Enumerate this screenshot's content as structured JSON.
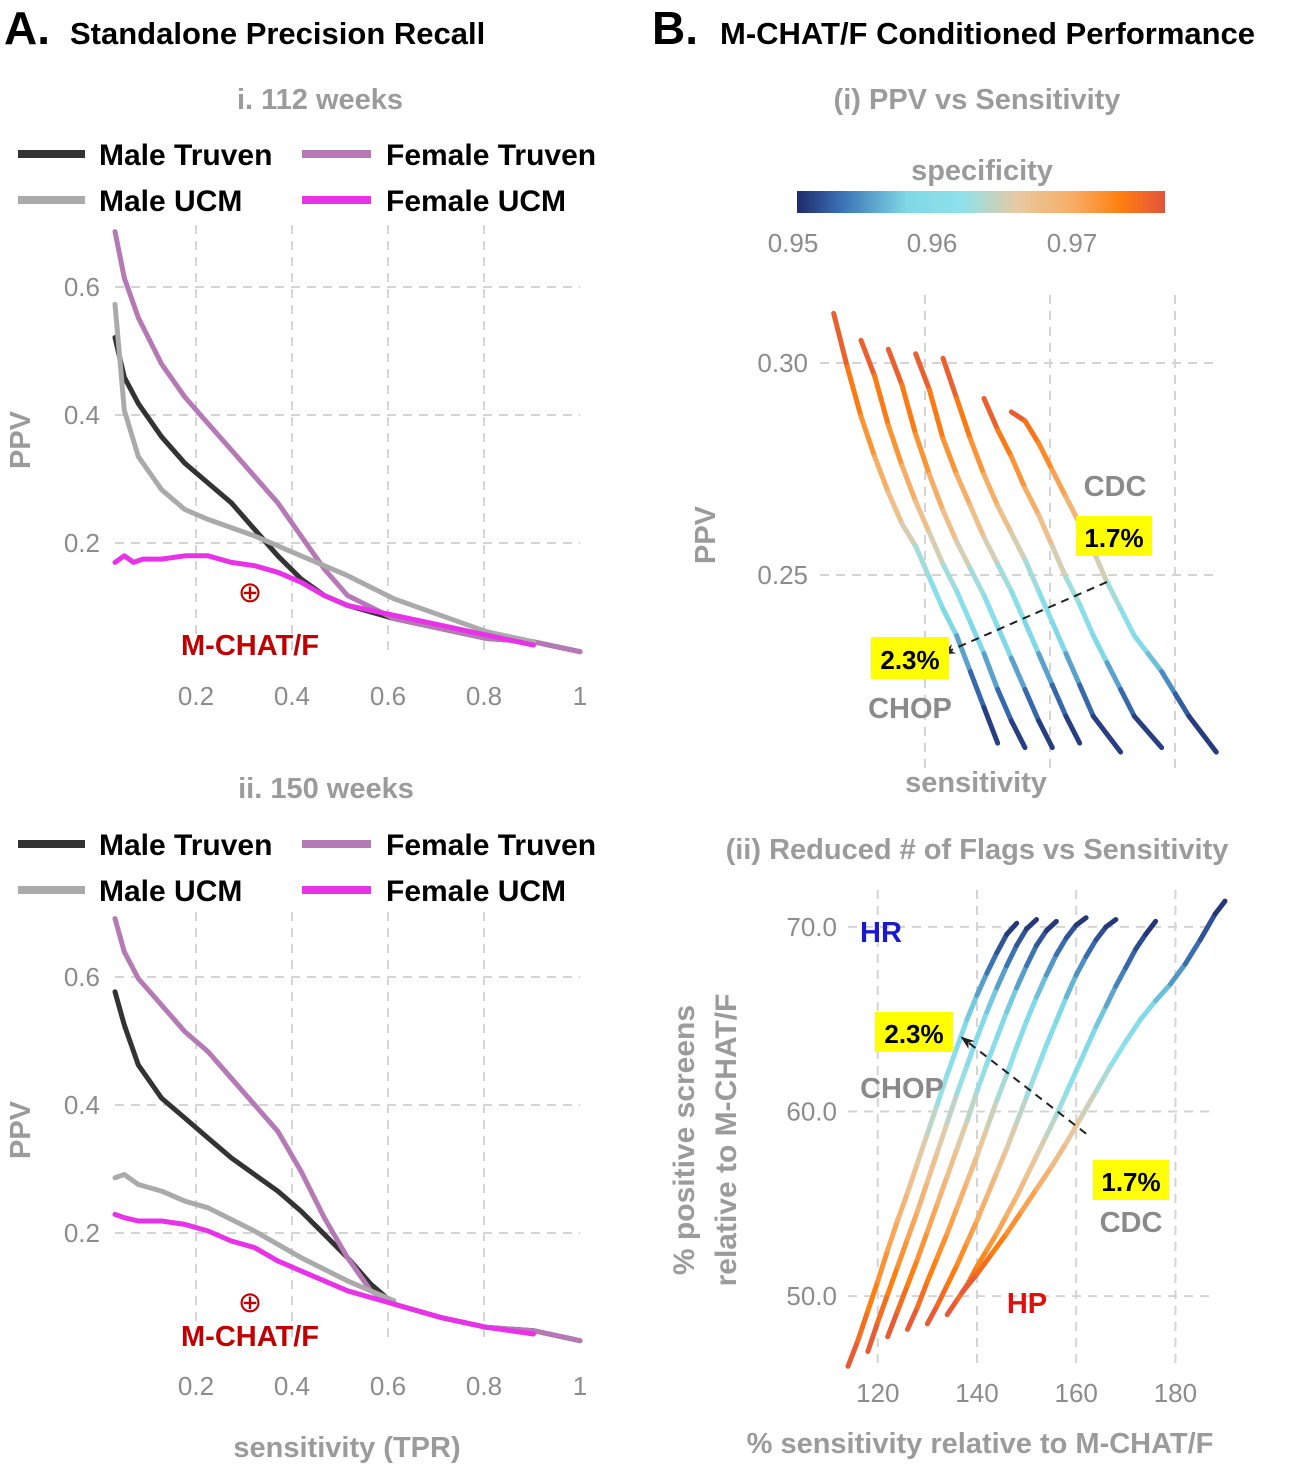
{
  "panelA": {
    "letter": "A.",
    "title": "Standalone Precision Recall",
    "charts": [
      {
        "subtitle": "i.  112 weeks",
        "marker_label": "M-CHAT/F",
        "marker": {
          "x": 0.31,
          "y": 0.165
        }
      },
      {
        "subtitle": "ii.  150 weeks",
        "marker_label": "M-CHAT/F",
        "marker": {
          "x": 0.31,
          "y": 0.12
        }
      }
    ],
    "xlabel": "sensitivity (TPR)",
    "ylabel": "PPV",
    "legend": [
      "Male Truven",
      "Female Truven",
      "Male UCM",
      "Female UCM"
    ]
  },
  "panelB": {
    "letter": "B.",
    "title": "M-CHAT/F Conditioned Performance",
    "sub1": {
      "subtitle": "(i) PPV vs Sensitivity",
      "colorbar_title": "specificity",
      "colorbar_ticks": [
        "0.95",
        "0.96",
        "0.97"
      ],
      "xlabel": "sensitivity",
      "ylabel": "PPV",
      "cdc_label": "CDC",
      "cdc_value": "1.7%",
      "chop_label": "CHOP",
      "chop_value": "2.3%"
    },
    "sub2": {
      "subtitle": "(ii) Reduced # of Flags vs Sensitivity",
      "xlabel": "% sensitivity relative to M-CHAT/F",
      "ylabel_line1": "% positive screens",
      "ylabel_line2": "relative to M-CHAT/F",
      "hr_label": "HR",
      "hp_label": "HP",
      "cdc_label": "CDC",
      "cdc_value": "1.7%",
      "chop_label": "CHOP",
      "chop_value": "2.3%"
    }
  },
  "colors": {
    "male_truven": "#333333",
    "female_truven": "#b57ab5",
    "male_ucm": "#aaaaaa",
    "female_ucm": "#e832e8",
    "mchat": "#c00000",
    "highlight": "#ffff00",
    "colormap": [
      "#1f2a6b",
      "#3a71b4",
      "#7fd9e6",
      "#8fe1ea",
      "#e8c9a3",
      "#f7ad64",
      "#ff7f0e",
      "#e2533d"
    ]
  },
  "chart_data": [
    {
      "type": "line",
      "title": "i.  112 weeks",
      "xlabel": "sensitivity (TPR)",
      "ylabel": "PPV",
      "xlim": [
        0.0,
        1.0
      ],
      "ylim": [
        0.05,
        0.7
      ],
      "xticks": [
        "0.2",
        "0.4",
        "0.6",
        "0.8",
        "1"
      ],
      "yticks": [
        "0.2",
        "0.4",
        "0.6"
      ],
      "series": [
        {
          "name": "Male Truven",
          "x": [
            0.0,
            0.02,
            0.05,
            0.1,
            0.15,
            0.2,
            0.25,
            0.3,
            0.35,
            0.4,
            0.45,
            0.5,
            0.6,
            0.7,
            0.8,
            0.9,
            1.0
          ],
          "y": [
            0.53,
            0.47,
            0.43,
            0.38,
            0.34,
            0.31,
            0.28,
            0.24,
            0.2,
            0.165,
            0.14,
            0.125,
            0.105,
            0.09,
            0.075,
            0.07,
            0.055
          ]
        },
        {
          "name": "Female Truven",
          "x": [
            0.0,
            0.02,
            0.05,
            0.1,
            0.15,
            0.2,
            0.25,
            0.3,
            0.35,
            0.4,
            0.45,
            0.5,
            0.6,
            0.7,
            0.8,
            0.9,
            1.0
          ],
          "y": [
            0.69,
            0.62,
            0.56,
            0.49,
            0.44,
            0.4,
            0.36,
            0.32,
            0.28,
            0.23,
            0.18,
            0.14,
            0.105,
            0.09,
            0.075,
            0.07,
            0.055
          ]
        },
        {
          "name": "Male UCM",
          "x": [
            0.0,
            0.01,
            0.02,
            0.05,
            0.1,
            0.15,
            0.2,
            0.3,
            0.4,
            0.5,
            0.6,
            0.7,
            0.8,
            0.9
          ],
          "y": [
            0.58,
            0.5,
            0.42,
            0.35,
            0.3,
            0.27,
            0.255,
            0.23,
            0.2,
            0.17,
            0.135,
            0.11,
            0.085,
            0.07
          ]
        },
        {
          "name": "Female UCM",
          "x": [
            0.0,
            0.02,
            0.04,
            0.06,
            0.1,
            0.15,
            0.2,
            0.25,
            0.3,
            0.35,
            0.4,
            0.45,
            0.5,
            0.6,
            0.7,
            0.8,
            0.9
          ],
          "y": [
            0.19,
            0.2,
            0.19,
            0.195,
            0.195,
            0.2,
            0.2,
            0.19,
            0.185,
            0.175,
            0.16,
            0.14,
            0.125,
            0.11,
            0.095,
            0.08,
            0.065
          ]
        }
      ]
    },
    {
      "type": "line",
      "title": "ii.  150 weeks",
      "xlabel": "sensitivity (TPR)",
      "ylabel": "PPV",
      "xlim": [
        0.0,
        1.0
      ],
      "ylim": [
        0.05,
        0.7
      ],
      "xticks": [
        "0.2",
        "0.4",
        "0.6",
        "0.8",
        "1"
      ],
      "yticks": [
        "0.2",
        "0.4",
        "0.6"
      ],
      "series": [
        {
          "name": "Male Truven",
          "x": [
            0.0,
            0.02,
            0.05,
            0.1,
            0.15,
            0.2,
            0.25,
            0.3,
            0.35,
            0.4,
            0.45,
            0.5,
            0.55,
            0.6,
            0.7,
            0.8,
            0.9,
            1.0
          ],
          "y": [
            0.58,
            0.53,
            0.47,
            0.42,
            0.39,
            0.36,
            0.33,
            0.305,
            0.28,
            0.25,
            0.215,
            0.18,
            0.14,
            0.11,
            0.09,
            0.075,
            0.07,
            0.055
          ]
        },
        {
          "name": "Female Truven",
          "x": [
            0.0,
            0.02,
            0.05,
            0.1,
            0.15,
            0.2,
            0.25,
            0.3,
            0.35,
            0.4,
            0.45,
            0.5,
            0.55,
            0.6,
            0.7,
            0.8,
            0.9,
            1.0
          ],
          "y": [
            0.69,
            0.64,
            0.6,
            0.56,
            0.52,
            0.49,
            0.45,
            0.41,
            0.37,
            0.31,
            0.24,
            0.18,
            0.13,
            0.11,
            0.09,
            0.075,
            0.07,
            0.055
          ]
        },
        {
          "name": "Male UCM",
          "x": [
            0.0,
            0.02,
            0.05,
            0.1,
            0.15,
            0.2,
            0.3,
            0.4,
            0.5,
            0.6
          ],
          "y": [
            0.3,
            0.305,
            0.29,
            0.28,
            0.265,
            0.255,
            0.22,
            0.18,
            0.145,
            0.115
          ]
        },
        {
          "name": "Female UCM",
          "x": [
            0.0,
            0.02,
            0.05,
            0.1,
            0.15,
            0.2,
            0.25,
            0.3,
            0.35,
            0.4,
            0.5,
            0.6,
            0.7,
            0.8,
            0.9
          ],
          "y": [
            0.245,
            0.24,
            0.235,
            0.235,
            0.23,
            0.22,
            0.205,
            0.195,
            0.175,
            0.16,
            0.13,
            0.11,
            0.09,
            0.075,
            0.065
          ]
        }
      ]
    },
    {
      "type": "line",
      "title": "(i) PPV vs Sensitivity",
      "xlabel": "sensitivity",
      "ylabel": "PPV",
      "ylim": [
        0.21,
        0.315
      ],
      "yticks": [
        "0.25",
        "0.30"
      ],
      "color_by": "specificity",
      "colorbar_range": [
        0.95,
        0.978
      ],
      "series": [
        {
          "name": "curve-1",
          "x": [
            0.42,
            0.43,
            0.44,
            0.45,
            0.46,
            0.47,
            0.48,
            0.49,
            0.5,
            0.51,
            0.52,
            0.53,
            0.54
          ],
          "y": [
            0.312,
            0.3,
            0.289,
            0.28,
            0.272,
            0.265,
            0.26,
            0.253,
            0.246,
            0.24,
            0.232,
            0.224,
            0.216
          ]
        },
        {
          "name": "curve-2",
          "x": [
            0.44,
            0.45,
            0.46,
            0.47,
            0.48,
            0.49,
            0.5,
            0.51,
            0.52,
            0.53,
            0.54,
            0.55,
            0.56
          ],
          "y": [
            0.306,
            0.298,
            0.287,
            0.278,
            0.27,
            0.263,
            0.256,
            0.25,
            0.243,
            0.236,
            0.228,
            0.221,
            0.215
          ]
        },
        {
          "name": "curve-3",
          "x": [
            0.46,
            0.47,
            0.48,
            0.49,
            0.5,
            0.51,
            0.52,
            0.53,
            0.54,
            0.55,
            0.56,
            0.57,
            0.58
          ],
          "y": [
            0.304,
            0.296,
            0.285,
            0.276,
            0.268,
            0.261,
            0.255,
            0.249,
            0.242,
            0.235,
            0.228,
            0.221,
            0.215
          ]
        },
        {
          "name": "curve-4",
          "x": [
            0.48,
            0.49,
            0.5,
            0.51,
            0.52,
            0.53,
            0.54,
            0.55,
            0.56,
            0.57,
            0.58,
            0.59,
            0.6
          ],
          "y": [
            0.303,
            0.295,
            0.284,
            0.276,
            0.269,
            0.262,
            0.256,
            0.25,
            0.243,
            0.236,
            0.229,
            0.222,
            0.216
          ]
        },
        {
          "name": "curve-5",
          "x": [
            0.5,
            0.51,
            0.52,
            0.53,
            0.54,
            0.55,
            0.56,
            0.57,
            0.58,
            0.59,
            0.6,
            0.61,
            0.63
          ],
          "y": [
            0.302,
            0.293,
            0.284,
            0.276,
            0.269,
            0.263,
            0.257,
            0.25,
            0.243,
            0.236,
            0.229,
            0.222,
            0.214
          ]
        },
        {
          "name": "curve-6",
          "x": [
            0.53,
            0.54,
            0.55,
            0.56,
            0.57,
            0.58,
            0.59,
            0.6,
            0.61,
            0.62,
            0.63,
            0.64,
            0.66
          ],
          "y": [
            0.293,
            0.286,
            0.28,
            0.273,
            0.267,
            0.26,
            0.253,
            0.247,
            0.24,
            0.234,
            0.228,
            0.222,
            0.215
          ]
        },
        {
          "name": "curve-7",
          "x": [
            0.55,
            0.56,
            0.57,
            0.58,
            0.59,
            0.6,
            0.61,
            0.62,
            0.63,
            0.64,
            0.65,
            0.66,
            0.67,
            0.68,
            0.7
          ],
          "y": [
            0.29,
            0.288,
            0.283,
            0.277,
            0.271,
            0.265,
            0.259,
            0.252,
            0.246,
            0.24,
            0.236,
            0.232,
            0.227,
            0.222,
            0.214
          ]
        }
      ],
      "arrow": {
        "from": [
          0.62,
          0.252
        ],
        "to": [
          0.5,
          0.236
        ]
      }
    },
    {
      "type": "line",
      "title": "(ii) Reduced # of Flags vs Sensitivity",
      "xlabel": "% sensitivity relative to M-CHAT/F",
      "ylabel": "% positive screens relative to M-CHAT/F",
      "xlim": [
        114,
        191
      ],
      "ylim": [
        46,
        72
      ],
      "xticks": [
        "120",
        "140",
        "160",
        "180"
      ],
      "yticks": [
        "50.0",
        "60.0",
        "70.0"
      ],
      "color_by": "specificity",
      "series": [
        {
          "name": "curve-1",
          "x": [
            114,
            116,
            118,
            120,
            122,
            124,
            126,
            128,
            130,
            132,
            134,
            136,
            138,
            140,
            142,
            144,
            146,
            148
          ],
          "y": [
            46.2,
            47.6,
            49.2,
            50.8,
            52.5,
            54.1,
            55.6,
            57.2,
            58.8,
            60.4,
            62.0,
            63.5,
            65.0,
            66.3,
            67.5,
            68.6,
            69.6,
            70.2
          ]
        },
        {
          "name": "curve-2",
          "x": [
            118,
            120,
            122,
            124,
            126,
            128,
            130,
            132,
            134,
            136,
            138,
            140,
            142,
            144,
            146,
            148,
            150,
            152
          ],
          "y": [
            47.0,
            48.6,
            50.1,
            51.6,
            53.1,
            54.6,
            56.2,
            57.8,
            59.4,
            61.0,
            62.5,
            64.0,
            65.4,
            66.7,
            67.9,
            69.0,
            69.9,
            70.4
          ]
        },
        {
          "name": "curve-3",
          "x": [
            122,
            124,
            126,
            128,
            130,
            132,
            134,
            136,
            138,
            140,
            142,
            144,
            146,
            148,
            150,
            152,
            154,
            156
          ],
          "y": [
            47.8,
            49.2,
            50.6,
            52.0,
            53.5,
            55.0,
            56.5,
            58.0,
            59.5,
            61.1,
            62.6,
            64.0,
            65.4,
            66.7,
            67.9,
            69.0,
            69.8,
            70.3
          ]
        },
        {
          "name": "curve-4",
          "x": [
            126,
            128,
            130,
            132,
            134,
            136,
            138,
            140,
            142,
            144,
            146,
            148,
            150,
            152,
            154,
            156,
            158,
            160,
            162
          ],
          "y": [
            48.2,
            49.4,
            50.8,
            52.1,
            53.4,
            54.8,
            56.2,
            57.6,
            59.1,
            60.6,
            62.0,
            63.5,
            64.9,
            66.2,
            67.4,
            68.5,
            69.4,
            70.1,
            70.5
          ]
        },
        {
          "name": "curve-5",
          "x": [
            130,
            132,
            134,
            136,
            138,
            140,
            142,
            144,
            146,
            148,
            150,
            152,
            154,
            156,
            158,
            160,
            162,
            164,
            166,
            168
          ],
          "y": [
            48.5,
            49.5,
            50.6,
            51.7,
            52.9,
            54.1,
            55.4,
            56.7,
            58.0,
            59.4,
            60.8,
            62.2,
            63.6,
            64.9,
            66.2,
            67.4,
            68.4,
            69.3,
            70.0,
            70.4
          ]
        },
        {
          "name": "curve-6",
          "x": [
            134,
            136,
            138,
            140,
            142,
            144,
            146,
            148,
            150,
            152,
            154,
            156,
            158,
            160,
            162,
            164,
            166,
            168,
            170,
            172,
            174,
            176
          ],
          "y": [
            49.0,
            49.8,
            50.6,
            51.6,
            52.5,
            53.4,
            54.4,
            55.4,
            56.5,
            57.6,
            58.7,
            59.8,
            61.0,
            62.2,
            63.4,
            64.6,
            65.7,
            66.8,
            67.8,
            68.8,
            69.6,
            70.3
          ]
        },
        {
          "name": "curve-7",
          "x": [
            137,
            140,
            143,
            146,
            149,
            152,
            155,
            158,
            161,
            164,
            167,
            170,
            173,
            176,
            179,
            182,
            185,
            188,
            190
          ],
          "y": [
            50.2,
            51.2,
            52.3,
            53.4,
            54.6,
            55.8,
            57.0,
            58.3,
            59.7,
            61.1,
            62.5,
            63.8,
            65.0,
            66.0,
            66.9,
            68.0,
            69.3,
            70.7,
            71.4
          ]
        }
      ],
      "arrow": {
        "from": [
          162,
          58.8
        ],
        "to": [
          137,
          64.0
        ]
      }
    }
  ]
}
